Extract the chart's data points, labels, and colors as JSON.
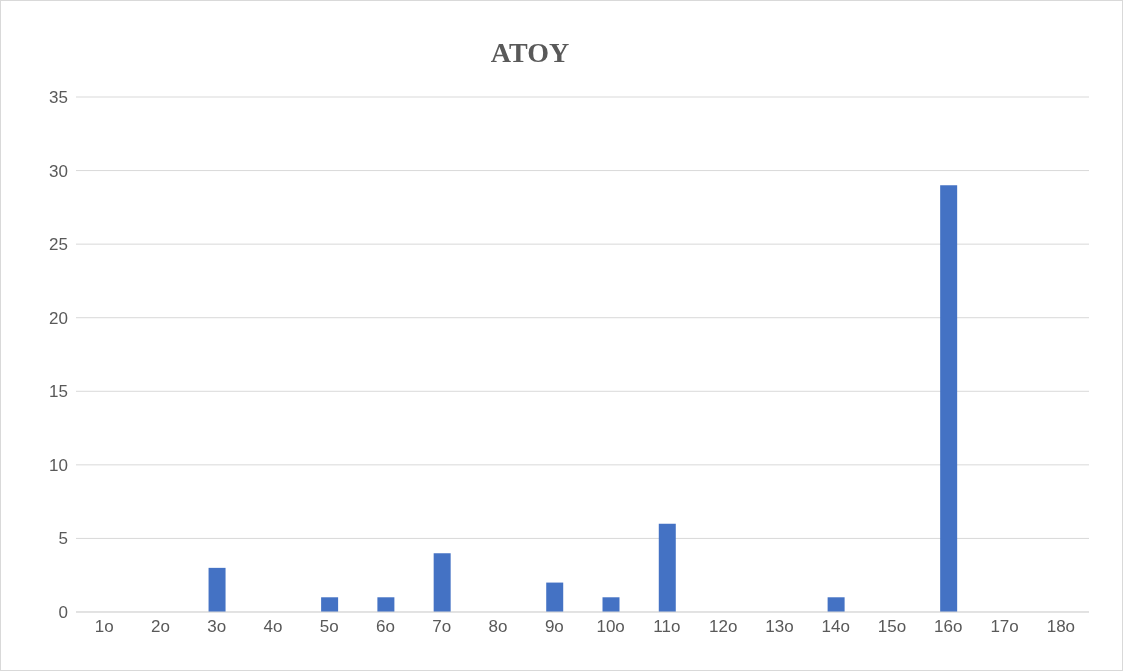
{
  "chart_data": {
    "type": "bar",
    "title": "ATOY",
    "categories": [
      "1o",
      "2o",
      "3o",
      "4o",
      "5o",
      "6o",
      "7o",
      "8o",
      "9o",
      "10o",
      "11o",
      "12o",
      "13o",
      "14o",
      "15o",
      "16o",
      "17o",
      "18o"
    ],
    "values": [
      0,
      0,
      3,
      0,
      1,
      1,
      4,
      0,
      2,
      1,
      6,
      0,
      0,
      1,
      0,
      29,
      0,
      0
    ],
    "color": "#4472c4",
    "ylim": [
      0,
      35
    ],
    "yticks": [
      0,
      5,
      10,
      15,
      20,
      25,
      30,
      35
    ],
    "grid": "y"
  }
}
